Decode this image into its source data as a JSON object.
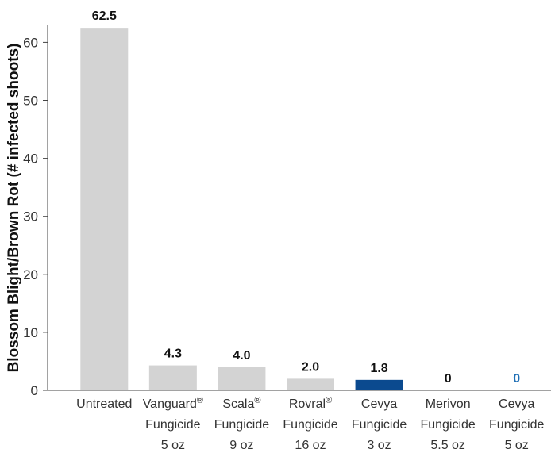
{
  "chart_data": {
    "type": "bar",
    "title": "",
    "xlabel": "",
    "ylabel": "Blossom Blight/Brown Rot (# infected shoots)",
    "ylim": [
      0,
      62.5
    ],
    "yticks": [
      0,
      10,
      20,
      30,
      40,
      50,
      60
    ],
    "categories": [
      "Untreated",
      "Vanguard® Fungicide 5 oz",
      "Scala® Fungicide 9 oz",
      "Rovral® Fungicide 16 oz",
      "Cevya Fungicide 3 oz",
      "Merivon Fungicide 5.5 oz",
      "Cevya Fungicide 5 oz"
    ],
    "category_lines": [
      [
        [
          "Untreated",
          ""
        ]
      ],
      [
        [
          "Vanguard",
          "®"
        ],
        [
          "Fungicide",
          ""
        ],
        [
          "5 oz",
          ""
        ]
      ],
      [
        [
          "Scala",
          "®"
        ],
        [
          "Fungicide",
          ""
        ],
        [
          "9 oz",
          ""
        ]
      ],
      [
        [
          "Rovral",
          "®"
        ],
        [
          "Fungicide",
          ""
        ],
        [
          "16 oz",
          ""
        ]
      ],
      [
        [
          "Cevya",
          ""
        ],
        [
          "Fungicide",
          ""
        ],
        [
          "3 oz",
          ""
        ]
      ],
      [
        [
          "Merivon",
          ""
        ],
        [
          "Fungicide",
          ""
        ],
        [
          "5.5 oz",
          ""
        ]
      ],
      [
        [
          "Cevya",
          ""
        ],
        [
          "Fungicide",
          ""
        ],
        [
          "5 oz",
          ""
        ]
      ]
    ],
    "values": [
      62.5,
      4.3,
      4.0,
      2.0,
      1.8,
      0,
      0
    ],
    "value_labels": [
      "62.5",
      "4.3",
      "4.0",
      "2.0",
      "1.8",
      "0",
      "0"
    ],
    "bar_colors": [
      "#d3d3d3",
      "#d3d3d3",
      "#d3d3d3",
      "#d3d3d3",
      "#0b4a8f",
      "#d3d3d3",
      "#d3d3d3"
    ],
    "label_colors": [
      "#111111",
      "#111111",
      "#111111",
      "#111111",
      "#111111",
      "#111111",
      "#1f6fb5"
    ],
    "grid": false,
    "legend": "none"
  }
}
